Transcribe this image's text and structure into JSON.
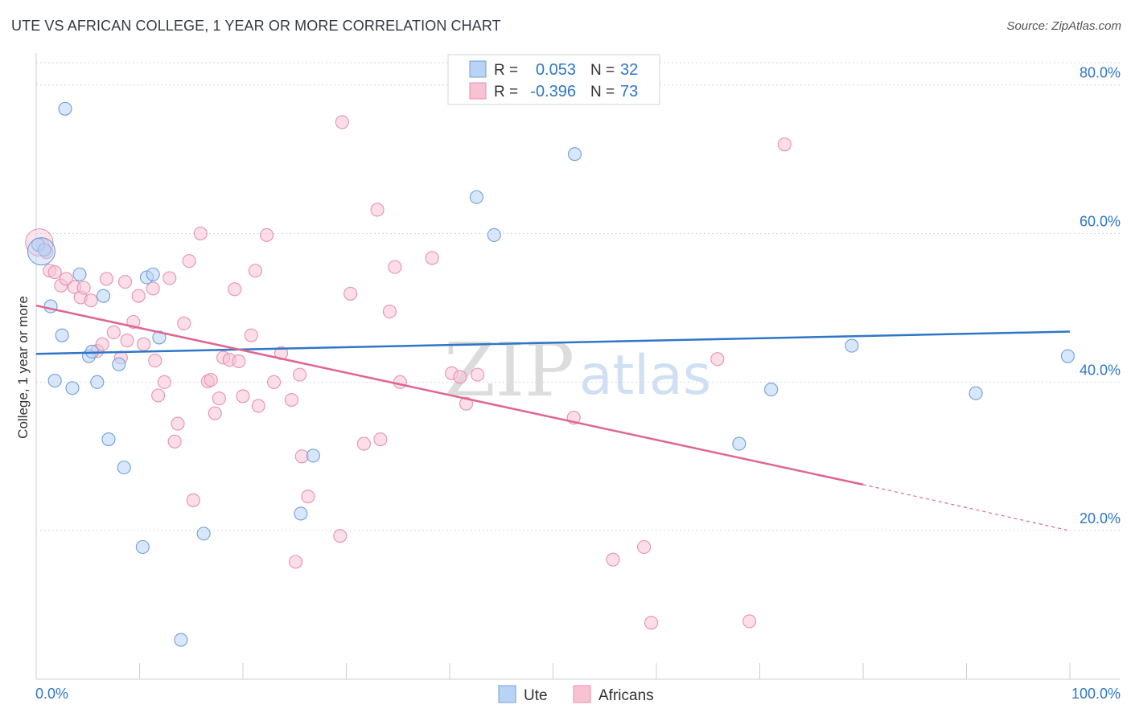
{
  "title": "UTE VS AFRICAN COLLEGE, 1 YEAR OR MORE CORRELATION CHART",
  "source": "Source: ZipAtlas.com",
  "watermark": {
    "zip": "ZIP",
    "atlas": "atlas"
  },
  "colors": {
    "ute_fill": "#b9d3f5",
    "ute_stroke": "#6f9fdc",
    "ute_line": "#2f76c9",
    "afr_fill": "#f7c3d3",
    "afr_stroke": "#e891ad",
    "afr_line": "#e0658f",
    "value_text": "#2f76c9",
    "grid": "#d9d9d9"
  },
  "legend": {
    "rows": [
      {
        "series": "ute",
        "r_label": "R =",
        "r_value": "0.053",
        "n_label": "N =",
        "n_value": "32"
      },
      {
        "series": "afr",
        "r_label": "R =",
        "r_value": "-0.396",
        "n_label": "N =",
        "n_value": "73"
      }
    ],
    "bottom": [
      {
        "series": "ute",
        "label": "Ute"
      },
      {
        "series": "afr",
        "label": "Africans"
      }
    ]
  },
  "chart_data": {
    "type": "scatter",
    "title": "UTE VS AFRICAN COLLEGE, 1 YEAR OR MORE CORRELATION CHART",
    "xlabel": "",
    "ylabel": "College, 1 year or more",
    "xlim": [
      0,
      100
    ],
    "ylim": [
      0,
      83
    ],
    "x_tick_labels": [
      {
        "value": 0,
        "label": "0.0%"
      },
      {
        "value": 100,
        "label": "100.0%"
      }
    ],
    "x_minor_ticks": [
      10,
      20,
      30,
      40,
      50,
      60,
      70,
      80,
      90
    ],
    "y_ticks": [
      {
        "value": 20,
        "label": "20.0%"
      },
      {
        "value": 40,
        "label": "40.0%"
      },
      {
        "value": 60,
        "label": "60.0%"
      },
      {
        "value": 80,
        "label": "80.0%"
      }
    ],
    "series": [
      {
        "name": "Ute",
        "key": "ute",
        "r": 0.053,
        "n": 32,
        "trend": {
          "x0": 0,
          "y0": 43.8,
          "x1": 100,
          "y1": 46.8
        },
        "points": [
          [
            0.2,
            58.5
          ],
          [
            0.8,
            57.8
          ],
          [
            1.4,
            50.2
          ],
          [
            2.5,
            46.3
          ],
          [
            2.8,
            76.8
          ],
          [
            1.8,
            40.2
          ],
          [
            3.5,
            39.2
          ],
          [
            4.2,
            54.5
          ],
          [
            5.1,
            43.5
          ],
          [
            5.4,
            44.1
          ],
          [
            5.9,
            40.0
          ],
          [
            6.5,
            51.6
          ],
          [
            7.0,
            32.3
          ],
          [
            8.0,
            42.4
          ],
          [
            8.5,
            28.5
          ],
          [
            10.3,
            17.8
          ],
          [
            10.7,
            54.1
          ],
          [
            11.3,
            54.5
          ],
          [
            11.9,
            46.0
          ],
          [
            14.0,
            5.3
          ],
          [
            16.2,
            19.6
          ],
          [
            25.6,
            22.3
          ],
          [
            26.8,
            30.1
          ],
          [
            42.6,
            64.9
          ],
          [
            44.3,
            59.8
          ],
          [
            52.1,
            70.7
          ],
          [
            68.0,
            31.7
          ],
          [
            71.1,
            39.0
          ],
          [
            78.9,
            44.9
          ],
          [
            90.9,
            38.5
          ],
          [
            99.8,
            43.5
          ],
          [
            0.5,
            57.6
          ]
        ]
      },
      {
        "name": "Africans",
        "key": "afr",
        "r": -0.396,
        "n": 73,
        "trend": {
          "x0": 0,
          "y0": 50.3,
          "x1": 80,
          "y1": 26.2,
          "dash_to_x": 100,
          "dash_to_y": 20.0
        },
        "points": [
          [
            0.6,
            58.5
          ],
          [
            1.0,
            57.5
          ],
          [
            1.3,
            55.0
          ],
          [
            1.8,
            54.8
          ],
          [
            2.4,
            53.0
          ],
          [
            2.9,
            53.9
          ],
          [
            3.7,
            52.8
          ],
          [
            4.3,
            51.4
          ],
          [
            4.6,
            52.7
          ],
          [
            5.3,
            51.0
          ],
          [
            5.9,
            44.2
          ],
          [
            6.4,
            45.1
          ],
          [
            6.8,
            53.9
          ],
          [
            7.5,
            46.7
          ],
          [
            8.2,
            43.3
          ],
          [
            8.6,
            53.5
          ],
          [
            8.8,
            45.6
          ],
          [
            9.4,
            48.1
          ],
          [
            9.9,
            51.6
          ],
          [
            10.4,
            45.1
          ],
          [
            11.3,
            52.6
          ],
          [
            11.5,
            42.9
          ],
          [
            11.8,
            38.2
          ],
          [
            12.4,
            40.0
          ],
          [
            12.9,
            54.0
          ],
          [
            13.4,
            32.0
          ],
          [
            13.7,
            34.4
          ],
          [
            14.3,
            47.9
          ],
          [
            14.8,
            56.3
          ],
          [
            15.2,
            24.1
          ],
          [
            15.9,
            60.0
          ],
          [
            16.6,
            40.1
          ],
          [
            16.9,
            40.3
          ],
          [
            17.3,
            35.8
          ],
          [
            17.7,
            37.8
          ],
          [
            18.1,
            43.3
          ],
          [
            18.7,
            43.0
          ],
          [
            19.2,
            52.5
          ],
          [
            19.6,
            42.8
          ],
          [
            20.0,
            38.1
          ],
          [
            20.8,
            46.3
          ],
          [
            21.2,
            55.0
          ],
          [
            21.5,
            36.8
          ],
          [
            22.3,
            59.8
          ],
          [
            23.0,
            40.0
          ],
          [
            23.7,
            43.9
          ],
          [
            24.7,
            37.6
          ],
          [
            25.1,
            15.8
          ],
          [
            25.7,
            30.0
          ],
          [
            25.5,
            41.0
          ],
          [
            26.3,
            24.6
          ],
          [
            29.4,
            19.3
          ],
          [
            29.6,
            75.0
          ],
          [
            30.4,
            51.9
          ],
          [
            31.7,
            31.7
          ],
          [
            33.0,
            63.2
          ],
          [
            33.3,
            32.3
          ],
          [
            34.2,
            49.5
          ],
          [
            34.7,
            55.5
          ],
          [
            35.2,
            40.0
          ],
          [
            38.3,
            56.7
          ],
          [
            40.2,
            41.2
          ],
          [
            41.0,
            40.7
          ],
          [
            41.6,
            37.1
          ],
          [
            42.7,
            41.0
          ],
          [
            52.0,
            35.2
          ],
          [
            55.8,
            16.1
          ],
          [
            58.8,
            17.8
          ],
          [
            59.5,
            7.6
          ],
          [
            65.9,
            43.1
          ],
          [
            69.0,
            7.8
          ],
          [
            72.4,
            72.0
          ],
          [
            0.3,
            58.8
          ]
        ]
      }
    ]
  }
}
